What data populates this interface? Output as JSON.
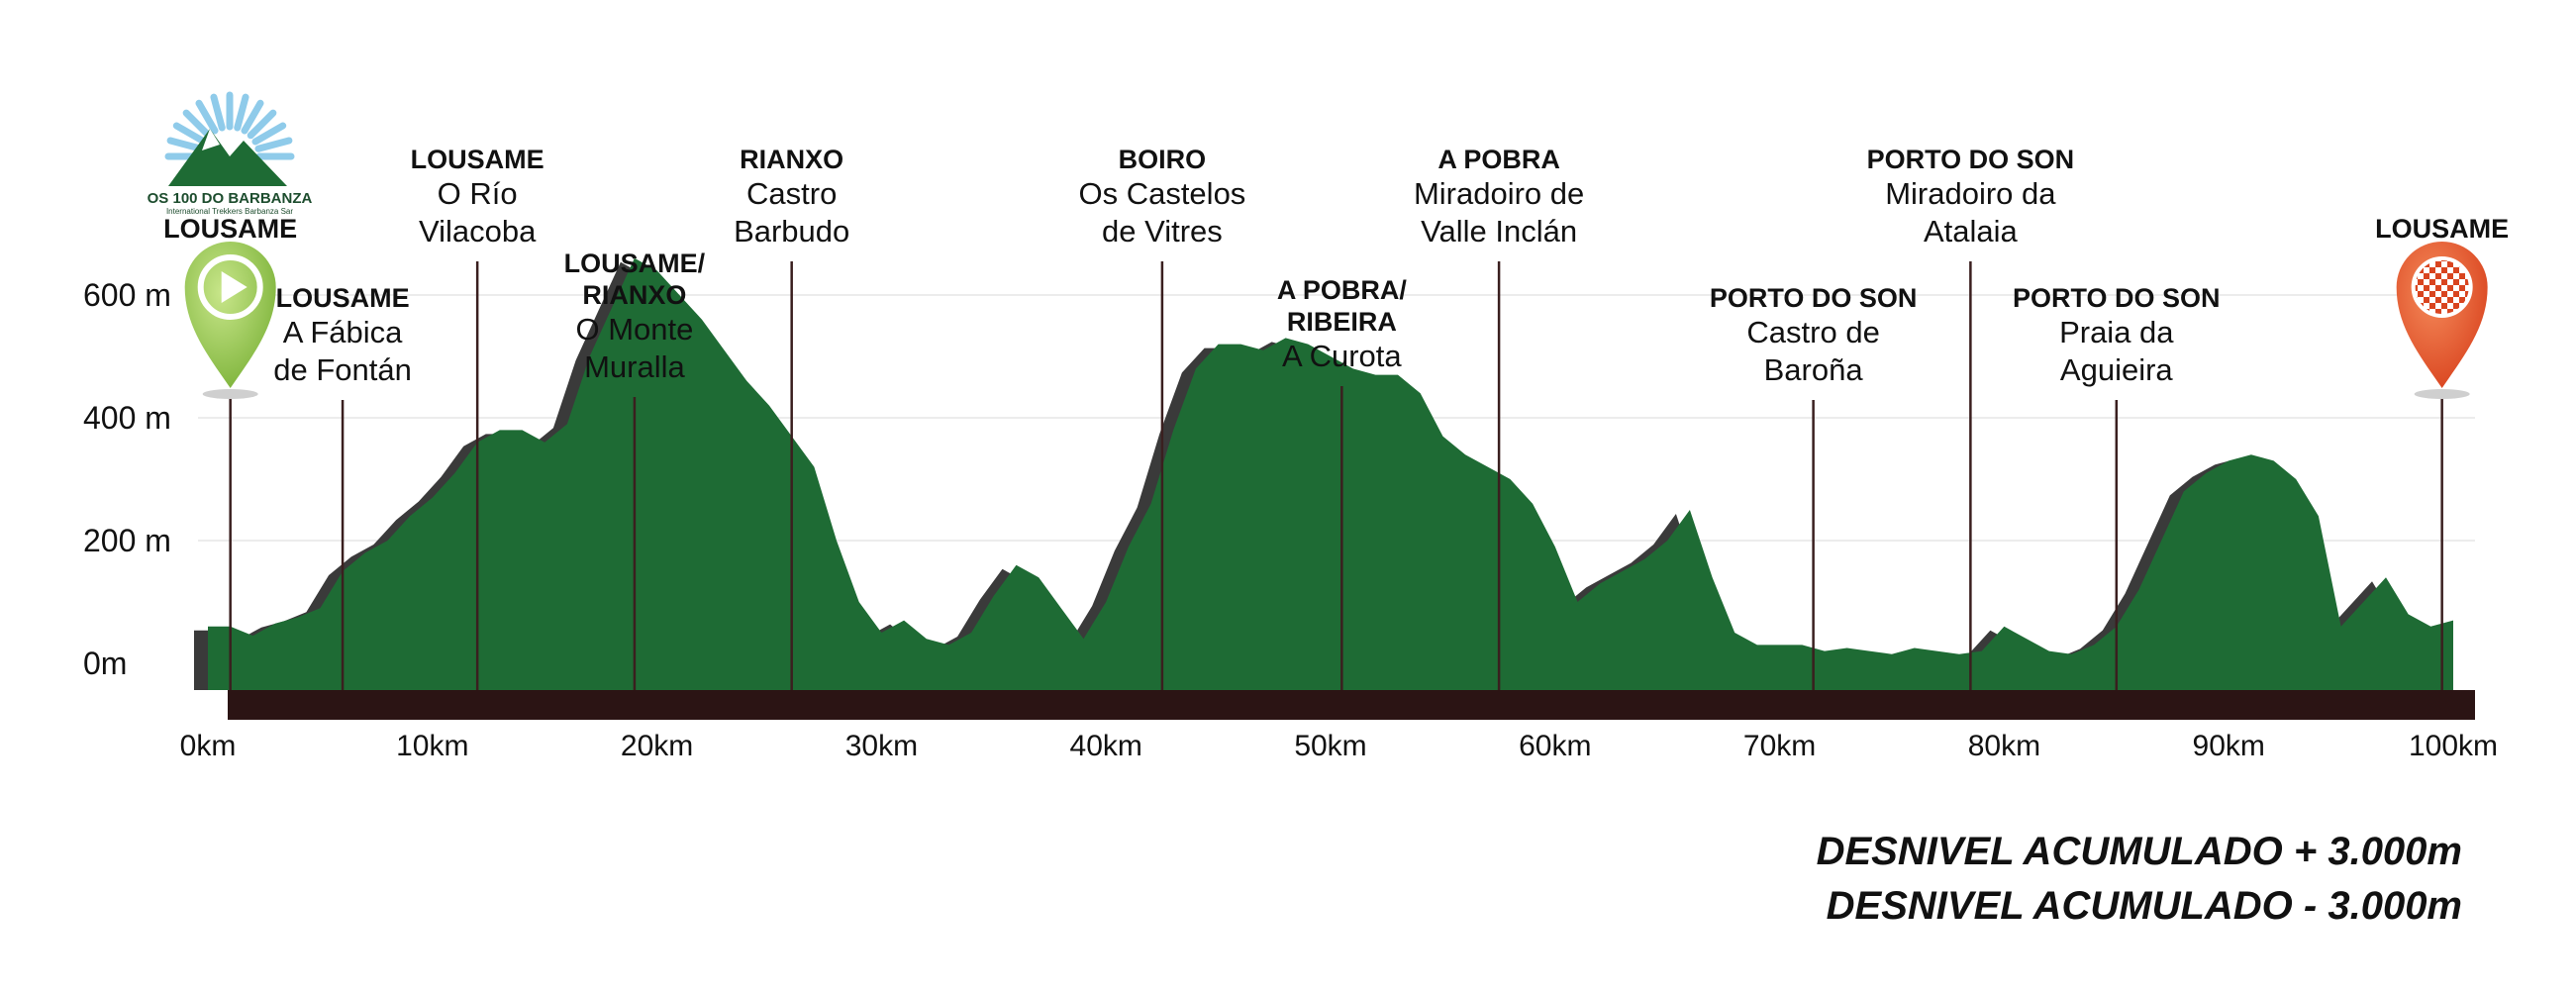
{
  "logo": {
    "name": "OS 100 DO BARBANZA",
    "subtitle": "International Trekkers Barbanza Sar"
  },
  "chart_data": {
    "type": "area",
    "title": "",
    "xlabel": "",
    "ylabel": "",
    "x_unit": "km",
    "y_unit": "m",
    "xlim": [
      0,
      100
    ],
    "ylim": [
      -40,
      620
    ],
    "x_ticks": [
      {
        "value": 0,
        "label": "0km"
      },
      {
        "value": 10,
        "label": "10km"
      },
      {
        "value": 20,
        "label": "20km"
      },
      {
        "value": 30,
        "label": "30km"
      },
      {
        "value": 40,
        "label": "40km"
      },
      {
        "value": 50,
        "label": "50km"
      },
      {
        "value": 60,
        "label": "60km"
      },
      {
        "value": 70,
        "label": "70km"
      },
      {
        "value": 80,
        "label": "80km"
      },
      {
        "value": 90,
        "label": "90km"
      },
      {
        "value": 100,
        "label": "100km"
      }
    ],
    "y_ticks": [
      {
        "value": 0,
        "label": "0m"
      },
      {
        "value": 200,
        "label": "200 m"
      },
      {
        "value": 400,
        "label": "400 m"
      },
      {
        "value": 600,
        "label": "600 m"
      }
    ],
    "grid": true,
    "colors": {
      "profile": "#1e6b34",
      "shadow": "#3a3a3a",
      "baseline": "#2b1414",
      "marker_line": "#3a1f1f",
      "start_pin": "#8cc63f",
      "finish_pin": "#e0522a"
    },
    "profile": {
      "x": [
        0,
        1,
        2,
        3,
        4,
        5,
        6,
        7,
        8,
        9,
        10,
        11,
        12,
        13,
        14,
        15,
        16,
        17,
        18,
        19,
        20,
        21,
        22,
        23,
        24,
        25,
        26,
        27,
        28,
        29,
        30,
        31,
        32,
        33,
        34,
        35,
        36,
        37,
        38,
        39,
        40,
        41,
        42,
        43,
        44,
        45,
        46,
        47,
        48,
        49,
        50,
        51,
        52,
        53,
        54,
        55,
        56,
        57,
        58,
        59,
        60,
        61,
        62,
        63,
        64,
        65,
        66,
        67,
        68,
        69,
        70,
        71,
        72,
        73,
        74,
        75,
        76,
        77,
        78,
        79,
        80,
        81,
        82,
        83,
        84,
        85,
        86,
        87,
        88,
        89,
        90,
        91,
        92,
        93,
        94,
        95,
        96,
        97,
        98,
        99,
        100
      ],
      "y": [
        60,
        60,
        45,
        65,
        75,
        90,
        150,
        180,
        200,
        240,
        270,
        310,
        360,
        380,
        380,
        360,
        390,
        500,
        580,
        660,
        640,
        600,
        560,
        510,
        460,
        420,
        370,
        320,
        200,
        100,
        50,
        70,
        40,
        30,
        50,
        110,
        160,
        140,
        90,
        40,
        100,
        190,
        260,
        380,
        480,
        520,
        520,
        510,
        530,
        520,
        500,
        480,
        470,
        470,
        440,
        370,
        340,
        320,
        300,
        260,
        190,
        100,
        130,
        150,
        170,
        200,
        250,
        140,
        50,
        30,
        30,
        30,
        20,
        25,
        20,
        15,
        25,
        20,
        15,
        20,
        60,
        40,
        20,
        15,
        30,
        60,
        120,
        200,
        280,
        310,
        330,
        340,
        330,
        300,
        240,
        60,
        100,
        140,
        80,
        60,
        70
      ]
    },
    "waypoints": [
      {
        "km": 1,
        "town": "LOUSAME",
        "place": [],
        "kind": "start"
      },
      {
        "km": 6,
        "town": "LOUSAME",
        "place": [
          "A Fábica",
          "de Fontán"
        ]
      },
      {
        "km": 12,
        "town": "LOUSAME",
        "place": [
          "O Río",
          "Vilacoba"
        ]
      },
      {
        "km": 19,
        "town": "LOUSAME/ RIANXO",
        "place": [
          "O Monte",
          "Muralla"
        ]
      },
      {
        "km": 26,
        "town": "RIANXO",
        "place": [
          "Castro",
          "Barbudo"
        ]
      },
      {
        "km": 42.5,
        "town": "BOIRO",
        "place": [
          "Os Castelos",
          "de Vitres"
        ]
      },
      {
        "km": 50.5,
        "town": "A POBRA/ RIBEIRA",
        "place": [
          "A Curota"
        ]
      },
      {
        "km": 57.5,
        "town": "A POBRA",
        "place": [
          "Miradoiro de",
          "Valle Inclán"
        ]
      },
      {
        "km": 71.5,
        "town": "PORTO DO SON",
        "place": [
          "Castro de",
          "Baroña"
        ]
      },
      {
        "km": 78.5,
        "town": "PORTO DO SON",
        "place": [
          "Miradoiro da",
          "Atalaia"
        ]
      },
      {
        "km": 85,
        "town": "PORTO DO SON",
        "place": [
          "Praia da",
          "Aguieira"
        ]
      },
      {
        "km": 99.5,
        "town": "LOUSAME",
        "place": [],
        "kind": "finish"
      }
    ]
  },
  "summary": {
    "gain": "DESNIVEL ACUMULADO + 3.000m",
    "loss": "DESNIVEL ACUMULADO - 3.000m"
  }
}
